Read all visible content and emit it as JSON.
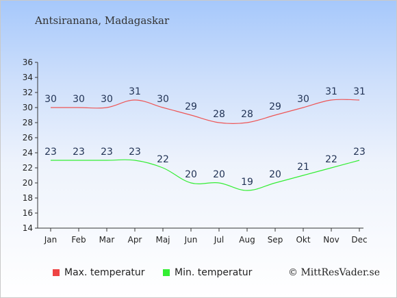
{
  "title": "Antsiranana, Madagaskar",
  "credit": "© MittResVader.se",
  "legend": {
    "max_label": "Max. temperatur",
    "min_label": "Min. temperatur"
  },
  "colors": {
    "max": "#ee5555",
    "min": "#33ee33",
    "max_swatch": "#ee4444",
    "min_swatch": "#33ee33"
  },
  "chart_data": {
    "type": "line",
    "title": "Antsiranana, Madagaskar",
    "xlabel": "",
    "ylabel": "",
    "categories": [
      "Jan",
      "Feb",
      "Mar",
      "Apr",
      "Maj",
      "Jun",
      "Jul",
      "Aug",
      "Sep",
      "Okt",
      "Nov",
      "Dec"
    ],
    "ylim": [
      14,
      36
    ],
    "yticks": [
      14,
      16,
      18,
      20,
      22,
      24,
      26,
      28,
      30,
      32,
      34,
      36
    ],
    "grid": false,
    "legend_position": "bottom",
    "series": [
      {
        "name": "Max. temperatur",
        "values": [
          30,
          30,
          30,
          31,
          30,
          29,
          28,
          28,
          29,
          30,
          31,
          31
        ],
        "labels": [
          "30",
          "30",
          "30",
          "31",
          "30",
          "29",
          "28",
          "28",
          "29",
          "30",
          "31",
          "31"
        ]
      },
      {
        "name": "Min. temperatur",
        "values": [
          23,
          23,
          23,
          23,
          22,
          20,
          20,
          19,
          20,
          21,
          22,
          23
        ],
        "labels": [
          "23",
          "23",
          "23",
          "23",
          "22",
          "20",
          "20",
          "19",
          "20",
          "21",
          "22",
          "23"
        ]
      }
    ]
  }
}
